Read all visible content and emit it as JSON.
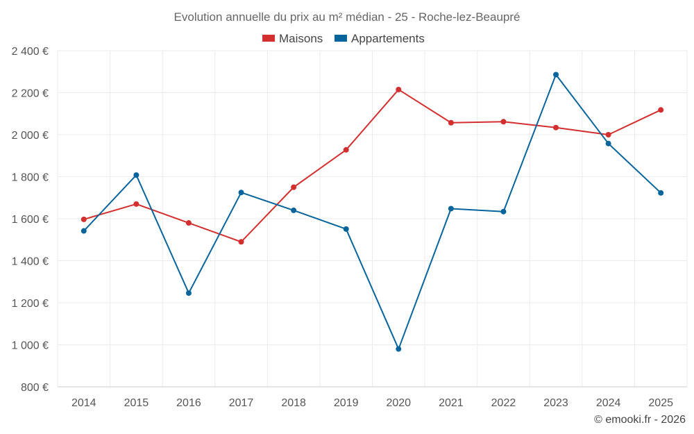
{
  "chart_data": {
    "type": "line",
    "title": "Evolution annuelle du prix au m² médian - 25 - Roche-lez-Beaupré",
    "categories": [
      "2014",
      "2015",
      "2016",
      "2017",
      "2018",
      "2019",
      "2020",
      "2021",
      "2022",
      "2023",
      "2024",
      "2025"
    ],
    "series": [
      {
        "name": "Maisons",
        "color": "#d32f2f",
        "values": [
          1597,
          1670,
          1580,
          1490,
          1750,
          1928,
          2215,
          2057,
          2062,
          2034,
          2000,
          2118
        ]
      },
      {
        "name": "Appartements",
        "color": "#05649c",
        "values": [
          1542,
          1808,
          1246,
          1725,
          1640,
          1551,
          980,
          1648,
          1634,
          2286,
          1958,
          1723
        ]
      }
    ],
    "y_ticks": [
      "800 €",
      "1 000 €",
      "1 200 €",
      "1 400 €",
      "1 600 €",
      "1 800 €",
      "2 000 €",
      "2 200 €",
      "2 400 €"
    ],
    "y_tick_values": [
      800,
      1000,
      1200,
      1400,
      1600,
      1800,
      2000,
      2200,
      2400
    ],
    "ylim": [
      800,
      2400
    ],
    "grid": true,
    "legend_position": "top-center",
    "credit": "© emooki.fr - 2026"
  }
}
